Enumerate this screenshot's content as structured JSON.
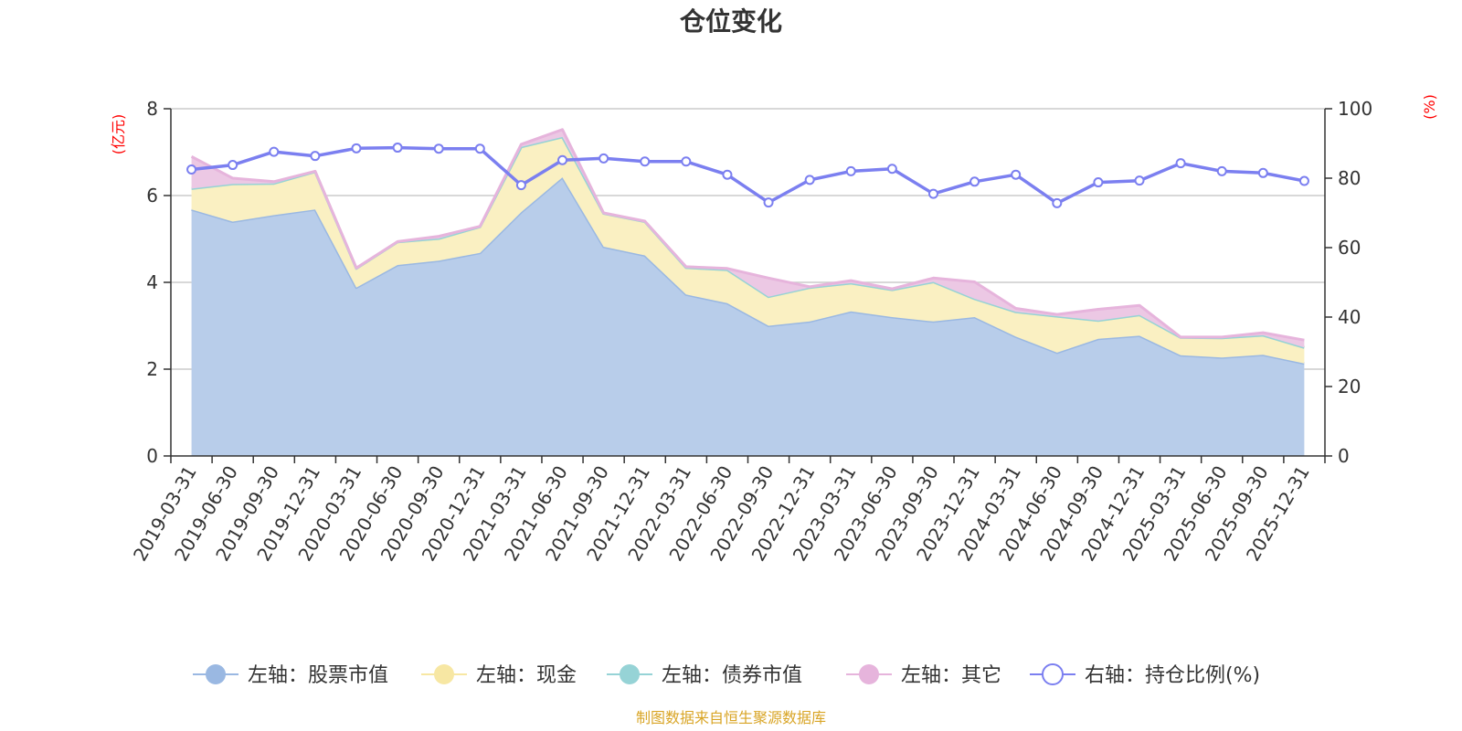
{
  "chart_data": {
    "type": "area",
    "title": "仓位变化",
    "categories": [
      "2019-03-31",
      "2019-06-30",
      "2019-09-30",
      "2019-12-31",
      "2020-03-31",
      "2020-06-30",
      "2020-09-30",
      "2020-12-31",
      "2021-03-31",
      "2021-06-30",
      "2021-09-30",
      "2021-12-31",
      "2022-03-31",
      "2022-06-30",
      "2022-09-30",
      "2022-12-31",
      "2023-03-31",
      "2023-06-30",
      "2023-09-30",
      "2023-12-31",
      "2024-03-31",
      "2024-06-30",
      "2024-09-30",
      "2024-12-31",
      "2025-03-31",
      "2025-06-30",
      "2025-09-30",
      "2025-12-31"
    ],
    "left_axis": {
      "unit": "(亿元)",
      "ylim": [
        0,
        8
      ],
      "ticks": [
        "0",
        "2",
        "4",
        "6",
        "8"
      ]
    },
    "right_axis": {
      "unit": "(%)",
      "ylim": [
        0,
        100
      ],
      "ticks": [
        "0",
        "20",
        "40",
        "60",
        "80",
        "100"
      ]
    },
    "series": [
      {
        "name": "左轴：股票市值",
        "axis": "left",
        "kind": "stack-area",
        "color": "#9ab8e2",
        "fill": "#b8cdea",
        "values": [
          5.68,
          5.4,
          5.55,
          5.68,
          3.88,
          4.4,
          4.5,
          4.68,
          5.62,
          6.42,
          4.82,
          4.62,
          3.72,
          3.52,
          3.0,
          3.1,
          3.33,
          3.2,
          3.1,
          3.2,
          2.75,
          2.38,
          2.7,
          2.77,
          2.32,
          2.27,
          2.33,
          2.13
        ]
      },
      {
        "name": "左轴：现金",
        "axis": "left",
        "kind": "stack-area",
        "color": "#f7e7a3",
        "fill": "#faf0c2",
        "values": [
          0.48,
          0.87,
          0.73,
          0.87,
          0.44,
          0.53,
          0.51,
          0.6,
          1.5,
          0.93,
          0.77,
          0.78,
          0.62,
          0.77,
          0.67,
          0.78,
          0.65,
          0.63,
          0.91,
          0.42,
          0.57,
          0.84,
          0.42,
          0.48,
          0.41,
          0.45,
          0.45,
          0.37
        ]
      },
      {
        "name": "左轴：债券市值",
        "axis": "left",
        "kind": "stack-area",
        "color": "#96d3d6",
        "fill": "#b6e1e3",
        "values": [
          0,
          0,
          0,
          0,
          0,
          0,
          0,
          0,
          0,
          0,
          0,
          0,
          0,
          0,
          0,
          0,
          0,
          0,
          0,
          0,
          0,
          0,
          0,
          0,
          0,
          0,
          0,
          0
        ]
      },
      {
        "name": "左轴：其它",
        "axis": "left",
        "kind": "stack-area",
        "color": "#e6b4dc",
        "fill": "#ecc8e4",
        "values": [
          0.74,
          0.13,
          0.04,
          0.01,
          0.01,
          0.01,
          0.05,
          0.01,
          0.06,
          0.17,
          0.01,
          0.01,
          0.02,
          0.03,
          0.43,
          0.02,
          0.06,
          0.02,
          0.09,
          0.39,
          0.08,
          0.04,
          0.26,
          0.22,
          0.01,
          0.02,
          0.06,
          0.17
        ]
      },
      {
        "name": "右轴：持仓比例(%)",
        "axis": "right",
        "kind": "line",
        "color": "#7b7ff0",
        "values": [
          82.5,
          83.8,
          87.6,
          86.4,
          88.6,
          88.8,
          88.5,
          88.5,
          78.0,
          85.2,
          85.7,
          84.8,
          84.8,
          81.0,
          73.0,
          79.5,
          82.0,
          82.7,
          75.5,
          79.0,
          81.0,
          72.8,
          78.8,
          79.3,
          84.3,
          82.0,
          81.5,
          79.2
        ]
      }
    ],
    "legend_position": "bottom",
    "grid": true,
    "source": "制图数据来自恒生聚源数据库"
  },
  "colors": {
    "left_unit": "#ff0000",
    "right_unit": "#ff0000",
    "source": "#d9a526",
    "axis": "#333333",
    "grid": "#cccccc"
  }
}
